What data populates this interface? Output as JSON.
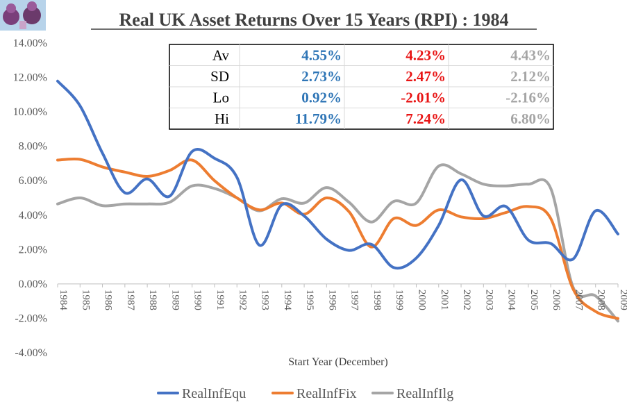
{
  "colors": {
    "equ": "#4472C4",
    "fix": "#ED7D31",
    "ilg": "#A5A5A5",
    "stat_equ": "#2E75B6",
    "stat_fix": "#E81414",
    "stat_ilg": "#A5A5A5"
  },
  "logo": {
    "icon": "cartoon-characters-logo"
  },
  "chart_data": {
    "type": "line",
    "title": "Real UK Asset Returns Over 15 Years (RPI) : 1984",
    "xlabel": "Start Year (December)",
    "ylabel": "",
    "ylim": [
      -0.04,
      0.14
    ],
    "y_ticks": [
      "14.00%",
      "12.00%",
      "10.00%",
      "8.00%",
      "6.00%",
      "4.00%",
      "2.00%",
      "0.00%",
      "-2.00%",
      "-4.00%"
    ],
    "categories": [
      "1984",
      "1985",
      "1986",
      "1987",
      "1988",
      "1989",
      "1990",
      "1991",
      "1992",
      "1993",
      "1994",
      "1995",
      "1996",
      "1997",
      "1998",
      "1999",
      "2000",
      "2001",
      "2002",
      "2003",
      "2004",
      "2005",
      "2006",
      "2007",
      "2008",
      "2009"
    ],
    "grid": false,
    "legend_position": "bottom",
    "series": [
      {
        "name": "RealInfEqu",
        "values": [
          0.1179,
          0.1035,
          0.076,
          0.053,
          0.061,
          0.051,
          0.077,
          0.073,
          0.062,
          0.0225,
          0.046,
          0.0395,
          0.026,
          0.0195,
          0.023,
          0.0095,
          0.015,
          0.034,
          0.0605,
          0.0395,
          0.045,
          0.0255,
          0.0235,
          0.0145,
          0.0425,
          0.029
        ]
      },
      {
        "name": "RealInfFix",
        "values": [
          0.072,
          0.0724,
          0.068,
          0.065,
          0.0625,
          0.066,
          0.072,
          0.06,
          0.05,
          0.043,
          0.047,
          0.0405,
          0.05,
          0.042,
          0.0215,
          0.038,
          0.034,
          0.043,
          0.039,
          0.038,
          0.0415,
          0.045,
          0.038,
          -0.003,
          -0.016,
          -0.0201
        ]
      },
      {
        "name": "RealInfIlg",
        "values": [
          0.0465,
          0.05,
          0.0455,
          0.0465,
          0.0465,
          0.0475,
          0.057,
          0.0555,
          0.05,
          0.0425,
          0.0495,
          0.047,
          0.056,
          0.0475,
          0.036,
          0.048,
          0.047,
          0.0685,
          0.064,
          0.058,
          0.057,
          0.058,
          0.0555,
          -0.002,
          -0.007,
          -0.0216
        ]
      }
    ],
    "stats_table": {
      "rows": [
        {
          "label": "Av",
          "values": [
            "4.55%",
            "4.23%",
            "4.43%"
          ]
        },
        {
          "label": "SD",
          "values": [
            "2.73%",
            "2.47%",
            "2.12%"
          ]
        },
        {
          "label": "Lo",
          "values": [
            "0.92%",
            "-2.01%",
            "-2.16%"
          ]
        },
        {
          "label": "Hi",
          "values": [
            "11.79%",
            "7.24%",
            "6.80%"
          ]
        }
      ]
    }
  }
}
